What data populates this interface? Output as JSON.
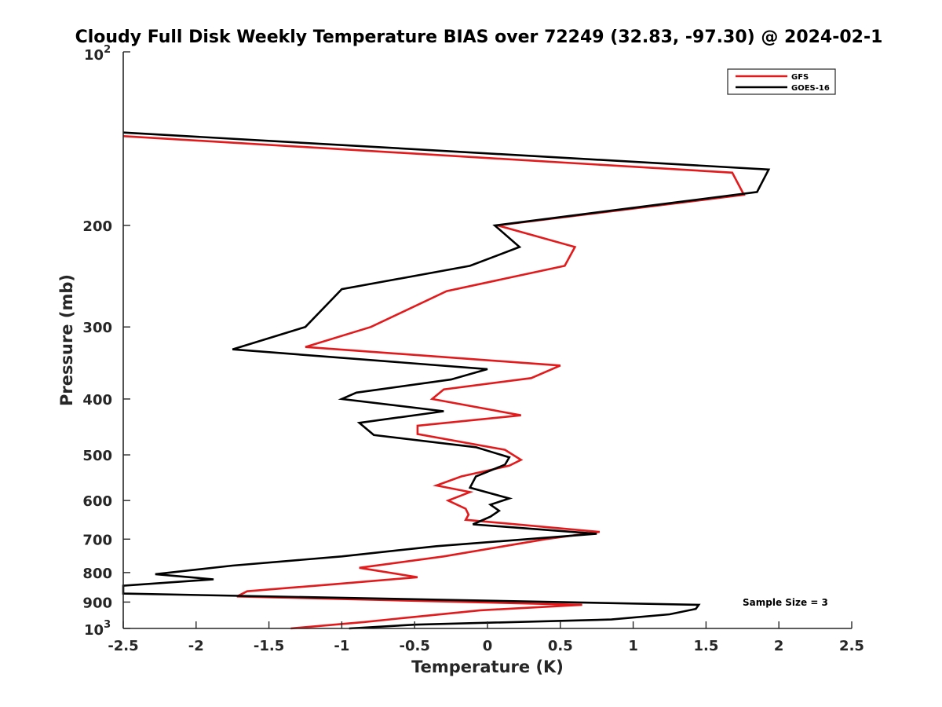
{
  "chart_data": {
    "type": "line",
    "title": "Cloudy Full Disk Weekly Temperature BIAS over 72249 (32.83, -97.30) @ 2024-02-1",
    "xlabel": "Temperature (K)",
    "ylabel": "Pressure (mb)",
    "xlim": [
      -2.5,
      2.5
    ],
    "ylim": [
      100,
      1000
    ],
    "y_scale": "log",
    "y_reversed": true,
    "xticks": [
      -2.5,
      -2,
      -1.5,
      -1,
      -0.5,
      0,
      0.5,
      1,
      1.5,
      2,
      2.5
    ],
    "xtick_labels": [
      "-2.5",
      "-2",
      "-1.5",
      "-1",
      "-0.5",
      "0",
      "0.5",
      "1",
      "1.5",
      "2",
      "2.5"
    ],
    "yticks": [
      200,
      300,
      400,
      500,
      600,
      700,
      800,
      900
    ],
    "ytick_labels": [
      "200",
      "300",
      "400",
      "500",
      "600",
      "700",
      "800",
      "900"
    ],
    "ylim_labels": {
      "base": "10",
      "top_exp": "2",
      "bottom_exp": "3"
    },
    "legend_position": "top-right",
    "grid": false,
    "annotation": "Sample Size = 3",
    "series": [
      {
        "name": "GFS",
        "color": "#e31a1c",
        "points": [
          [
            -2.5,
            140
          ],
          [
            1.68,
            162
          ],
          [
            1.76,
            177
          ],
          [
            0.07,
            200
          ],
          [
            0.6,
            218
          ],
          [
            0.53,
            235
          ],
          [
            -0.28,
            260
          ],
          [
            -0.8,
            300
          ],
          [
            -1.25,
            325
          ],
          [
            0.5,
            350
          ],
          [
            0.3,
            368
          ],
          [
            -0.3,
            385
          ],
          [
            -0.38,
            400
          ],
          [
            0.23,
            427
          ],
          [
            -0.48,
            445
          ],
          [
            -0.48,
            460
          ],
          [
            0.12,
            490
          ],
          [
            0.23,
            510
          ],
          [
            0.15,
            522
          ],
          [
            -0.18,
            545
          ],
          [
            -0.35,
            565
          ],
          [
            -0.12,
            580
          ],
          [
            -0.27,
            600
          ],
          [
            -0.15,
            620
          ],
          [
            -0.13,
            635
          ],
          [
            -0.15,
            648
          ],
          [
            0.77,
            680
          ],
          [
            0.4,
            700
          ],
          [
            -0.3,
            750
          ],
          [
            -0.88,
            785
          ],
          [
            -0.48,
            815
          ],
          [
            -1.1,
            840
          ],
          [
            -1.65,
            862
          ],
          [
            -1.72,
            880
          ],
          [
            0.65,
            910
          ],
          [
            -0.05,
            930
          ],
          [
            -0.5,
            955
          ],
          [
            -0.85,
            975
          ],
          [
            -1.35,
            1000
          ]
        ]
      },
      {
        "name": "GOES-16",
        "color": "#000000",
        "points": [
          [
            -2.5,
            138
          ],
          [
            1.93,
            160
          ],
          [
            1.85,
            175
          ],
          [
            0.05,
            200
          ],
          [
            0.22,
            218
          ],
          [
            -0.12,
            235
          ],
          [
            -1.0,
            258
          ],
          [
            -1.25,
            300
          ],
          [
            -1.75,
            328
          ],
          [
            0.0,
            355
          ],
          [
            -0.25,
            370
          ],
          [
            -0.9,
            390
          ],
          [
            -1.0,
            400
          ],
          [
            -0.3,
            420
          ],
          [
            -0.88,
            440
          ],
          [
            -0.78,
            462
          ],
          [
            -0.08,
            485
          ],
          [
            0.15,
            505
          ],
          [
            0.12,
            520
          ],
          [
            -0.08,
            545
          ],
          [
            -0.12,
            570
          ],
          [
            0.15,
            595
          ],
          [
            0.02,
            610
          ],
          [
            0.08,
            625
          ],
          [
            0.02,
            640
          ],
          [
            -0.1,
            660
          ],
          [
            0.75,
            685
          ],
          [
            -0.35,
            720
          ],
          [
            -1.0,
            750
          ],
          [
            -1.75,
            778
          ],
          [
            -2.28,
            805
          ],
          [
            -1.88,
            822
          ],
          [
            -2.5,
            843
          ],
          [
            -2.5,
            870
          ],
          [
            1.45,
            910
          ],
          [
            1.43,
            925
          ],
          [
            1.25,
            945
          ],
          [
            0.85,
            965
          ],
          [
            -0.5,
            985
          ],
          [
            -0.95,
            1000
          ]
        ]
      }
    ]
  }
}
